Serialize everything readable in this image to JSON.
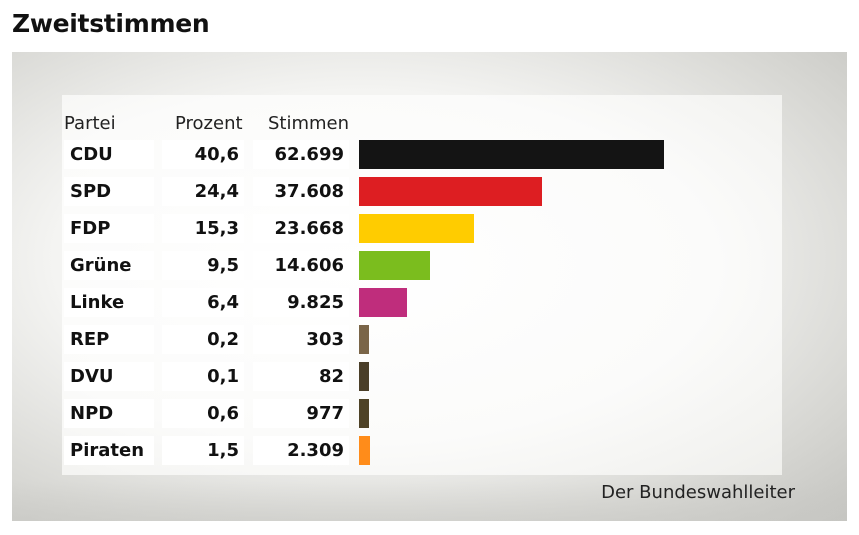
{
  "title": "Zweitstimmen",
  "headers": {
    "party": "Partei",
    "percent": "Prozent",
    "votes": "Stimmen"
  },
  "source": "Der Bundeswahlleiter",
  "chart_data": {
    "type": "bar",
    "orientation": "horizontal",
    "title": "Zweitstimmen",
    "categories": [
      "CDU",
      "SPD",
      "FDP",
      "Grüne",
      "Linke",
      "REP",
      "DVU",
      "NPD",
      "Piraten"
    ],
    "values": [
      40.6,
      24.4,
      15.3,
      9.5,
      6.4,
      0.2,
      0.1,
      0.6,
      1.5
    ],
    "value_labels": [
      "40,6",
      "24,4",
      "15,3",
      "9,5",
      "6,4",
      "0,2",
      "0,1",
      "0,6",
      "1,5"
    ],
    "votes": [
      62699,
      37608,
      23668,
      14606,
      9825,
      303,
      82,
      977,
      2309
    ],
    "vote_labels": [
      "62.699",
      "37.608",
      "23.668",
      "14.606",
      "9.825",
      "303",
      "82",
      "977",
      "2.309"
    ],
    "colors": [
      "#141414",
      "#dd1e22",
      "#ffcc00",
      "#7bbd1e",
      "#bf2d7c",
      "#7a6548",
      "#4a3e28",
      "#4e4226",
      "#ff8c1a"
    ],
    "xlabel": "",
    "ylabel": "",
    "xlim": [
      0,
      40.6
    ]
  }
}
